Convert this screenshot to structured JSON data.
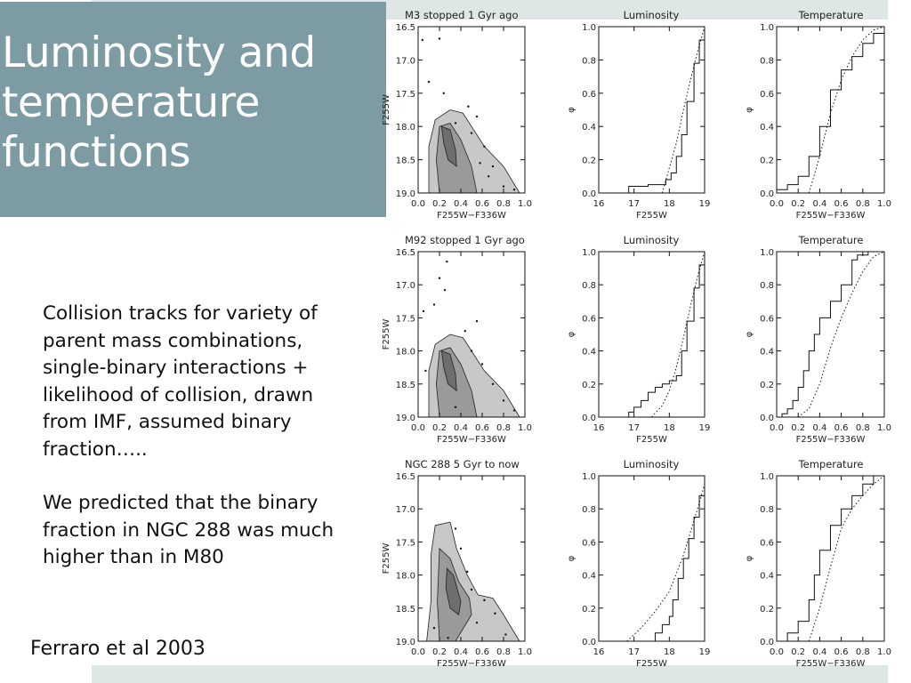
{
  "slide": {
    "title_lines": [
      "Luminosity and",
      "temperature",
      "functions"
    ],
    "paragraph1": "Collision tracks for variety of parent mass combinations, single-binary interactions + likelihood of collision, drawn from IMF, assumed binary fraction…..",
    "paragraph2": "We predicted that the binary fraction in NGC 288 was much higher than in M80",
    "citation": "Ferraro et al 2003",
    "title_bg_color": "#7d9ba3",
    "band_color": "#dfe6e6"
  },
  "chart_data": [
    {
      "type": "scatter",
      "panel": "cmd",
      "row": 0,
      "title": "M3 stopped 1 Gyr ago",
      "xlabel": "F255W−F336W",
      "ylabel": "F255W",
      "xlim": [
        0.0,
        1.0
      ],
      "ylim": [
        19.0,
        16.5
      ],
      "xticks": [
        "0.0",
        "0.2",
        "0.4",
        "0.6",
        "0.8",
        "1.0"
      ],
      "yticks": [
        "16.5",
        "17.0",
        "17.5",
        "18.0",
        "18.5",
        "19.0"
      ],
      "points": [
        [
          0.04,
          16.7
        ],
        [
          0.2,
          16.68
        ],
        [
          0.1,
          17.33
        ],
        [
          0.24,
          17.5
        ],
        [
          0.55,
          17.85
        ],
        [
          0.47,
          17.7
        ],
        [
          0.62,
          18.3
        ],
        [
          0.7,
          18.6
        ],
        [
          0.8,
          18.9
        ],
        [
          0.35,
          17.95
        ],
        [
          0.5,
          18.1
        ],
        [
          0.66,
          18.75
        ],
        [
          0.58,
          18.55
        ],
        [
          0.9,
          18.95
        ]
      ]
    },
    {
      "type": "line",
      "panel": "cdf",
      "row": 0,
      "title": "Luminosity",
      "xlabel": "F255W",
      "ylabel": "φ",
      "xlim": [
        16,
        19
      ],
      "ylim": [
        0.0,
        1.0
      ],
      "xticks": [
        "16",
        "17",
        "18",
        "19"
      ],
      "yticks": [
        "0.0",
        "0.2",
        "0.4",
        "0.6",
        "0.8",
        "1.0"
      ],
      "series": [
        {
          "style": "solid",
          "x": [
            16.6,
            16.85,
            17.4,
            17.9,
            18.05,
            18.2,
            18.35,
            18.5,
            18.7,
            18.85,
            19.0
          ],
          "y": [
            0.0,
            0.04,
            0.05,
            0.08,
            0.12,
            0.22,
            0.35,
            0.55,
            0.78,
            0.92,
            1.0
          ]
        },
        {
          "style": "dotted",
          "x": [
            17.8,
            18.0,
            18.2,
            18.4,
            18.6,
            18.8,
            19.0
          ],
          "y": [
            0.0,
            0.15,
            0.3,
            0.5,
            0.68,
            0.85,
            1.0
          ]
        }
      ]
    },
    {
      "type": "line",
      "panel": "cdf",
      "row": 0,
      "title": "Temperature",
      "xlabel": "F255W−F336W",
      "ylabel": "φ",
      "xlim": [
        0.0,
        1.0
      ],
      "ylim": [
        0.0,
        1.0
      ],
      "xticks": [
        "0.0",
        "0.2",
        "0.4",
        "0.6",
        "0.8",
        "1.0"
      ],
      "yticks": [
        "0.0",
        "0.2",
        "0.4",
        "0.6",
        "0.8",
        "1.0"
      ],
      "series": [
        {
          "style": "solid",
          "x": [
            0.0,
            0.1,
            0.2,
            0.3,
            0.4,
            0.5,
            0.6,
            0.7,
            0.8,
            0.9,
            1.0
          ],
          "y": [
            0.02,
            0.05,
            0.1,
            0.22,
            0.4,
            0.62,
            0.74,
            0.82,
            0.9,
            0.96,
            1.0
          ]
        },
        {
          "style": "dotted",
          "x": [
            0.3,
            0.4,
            0.5,
            0.6,
            0.7,
            0.8,
            0.9,
            1.0
          ],
          "y": [
            0.0,
            0.22,
            0.48,
            0.68,
            0.82,
            0.92,
            0.98,
            1.0
          ]
        }
      ]
    },
    {
      "type": "scatter",
      "panel": "cmd",
      "row": 1,
      "title": "M92 stopped 1 Gyr ago",
      "xlabel": "F255W−F336W",
      "ylabel": "F255W",
      "xlim": [
        0.0,
        1.0
      ],
      "ylim": [
        19.0,
        16.5
      ],
      "xticks": [
        "0.0",
        "0.2",
        "0.4",
        "0.6",
        "0.8",
        "1.0"
      ],
      "yticks": [
        "16.5",
        "17.0",
        "17.5",
        "18.0",
        "18.5",
        "19.0"
      ],
      "points": [
        [
          0.2,
          16.9
        ],
        [
          0.27,
          16.65
        ],
        [
          0.25,
          17.08
        ],
        [
          0.05,
          17.4
        ],
        [
          0.15,
          17.3
        ],
        [
          0.55,
          17.55
        ],
        [
          0.44,
          17.7
        ],
        [
          0.5,
          18.0
        ],
        [
          0.6,
          18.2
        ],
        [
          0.7,
          18.5
        ],
        [
          0.8,
          18.75
        ],
        [
          0.9,
          18.9
        ],
        [
          0.07,
          18.3
        ],
        [
          0.35,
          18.85
        ]
      ]
    },
    {
      "type": "line",
      "panel": "cdf",
      "row": 1,
      "title": "Luminosity",
      "xlabel": "F255W",
      "ylabel": "φ",
      "xlim": [
        16,
        19
      ],
      "ylim": [
        0.0,
        1.0
      ],
      "xticks": [
        "16",
        "17",
        "18",
        "19"
      ],
      "yticks": [
        "0.0",
        "0.2",
        "0.4",
        "0.6",
        "0.8",
        "1.0"
      ],
      "series": [
        {
          "style": "solid",
          "x": [
            16.7,
            16.85,
            17.0,
            17.2,
            17.4,
            17.6,
            17.8,
            18.0,
            18.2,
            18.35,
            18.5,
            18.7,
            18.85,
            19.0
          ],
          "y": [
            0.0,
            0.03,
            0.06,
            0.1,
            0.15,
            0.18,
            0.2,
            0.22,
            0.25,
            0.4,
            0.58,
            0.78,
            0.92,
            1.0
          ]
        },
        {
          "style": "dotted",
          "x": [
            17.5,
            17.8,
            18.0,
            18.2,
            18.4,
            18.6,
            18.8,
            19.0
          ],
          "y": [
            0.0,
            0.07,
            0.16,
            0.3,
            0.48,
            0.67,
            0.85,
            1.0
          ]
        }
      ]
    },
    {
      "type": "line",
      "panel": "cdf",
      "row": 1,
      "title": "Temperature",
      "xlabel": "F255W−F336W",
      "ylabel": "φ",
      "xlim": [
        0.0,
        1.0
      ],
      "ylim": [
        0.0,
        1.0
      ],
      "xticks": [
        "0.0",
        "0.2",
        "0.4",
        "0.6",
        "0.8",
        "1.0"
      ],
      "yticks": [
        "0.0",
        "0.2",
        "0.4",
        "0.6",
        "0.8",
        "1.0"
      ],
      "series": [
        {
          "style": "solid",
          "x": [
            0.0,
            0.05,
            0.1,
            0.15,
            0.2,
            0.25,
            0.3,
            0.35,
            0.4,
            0.5,
            0.6,
            0.7,
            0.75,
            0.85,
            1.0
          ],
          "y": [
            0.0,
            0.02,
            0.05,
            0.1,
            0.18,
            0.28,
            0.4,
            0.5,
            0.6,
            0.7,
            0.8,
            0.95,
            0.98,
            1.0,
            1.0
          ]
        },
        {
          "style": "dotted",
          "x": [
            0.2,
            0.3,
            0.4,
            0.5,
            0.6,
            0.7,
            0.8,
            0.9,
            1.0
          ],
          "y": [
            0.0,
            0.05,
            0.2,
            0.42,
            0.6,
            0.75,
            0.88,
            0.97,
            1.0
          ]
        }
      ]
    },
    {
      "type": "scatter",
      "panel": "cmd",
      "row": 2,
      "title": "NGC 288 5 Gyr to now",
      "xlabel": "F255W−F336W",
      "ylabel": "F255W",
      "xlim": [
        0.0,
        1.0
      ],
      "ylim": [
        19.0,
        16.5
      ],
      "xticks": [
        "0.0",
        "0.2",
        "0.4",
        "0.6",
        "0.8",
        "1.0"
      ],
      "yticks": [
        "16.5",
        "17.0",
        "17.5",
        "18.0",
        "18.5",
        "19.0"
      ],
      "points": [
        [
          0.35,
          17.3
        ],
        [
          0.4,
          17.6
        ],
        [
          0.46,
          17.95
        ],
        [
          0.5,
          18.22
        ],
        [
          0.62,
          18.38
        ],
        [
          0.72,
          18.58
        ],
        [
          0.15,
          18.8
        ],
        [
          0.28,
          18.95
        ],
        [
          0.55,
          18.72
        ],
        [
          0.82,
          18.9
        ]
      ]
    },
    {
      "type": "line",
      "panel": "cdf",
      "row": 2,
      "title": "Luminosity",
      "xlabel": "F255W",
      "ylabel": "φ",
      "xlim": [
        16,
        19
      ],
      "ylim": [
        0.0,
        1.0
      ],
      "xticks": [
        "16",
        "17",
        "18",
        "19"
      ],
      "yticks": [
        "0.0",
        "0.2",
        "0.4",
        "0.6",
        "0.8",
        "1.0"
      ],
      "series": [
        {
          "style": "solid",
          "x": [
            17.5,
            17.6,
            17.8,
            18.0,
            18.1,
            18.25,
            18.4,
            18.55,
            18.7,
            18.85,
            19.0
          ],
          "y": [
            0.0,
            0.05,
            0.1,
            0.15,
            0.25,
            0.38,
            0.5,
            0.62,
            0.75,
            0.88,
            1.0
          ]
        },
        {
          "style": "dotted",
          "x": [
            16.8,
            17.2,
            17.6,
            18.0,
            18.4,
            18.8,
            19.0
          ],
          "y": [
            0.0,
            0.08,
            0.18,
            0.3,
            0.52,
            0.8,
            0.95
          ]
        }
      ]
    },
    {
      "type": "line",
      "panel": "cdf",
      "row": 2,
      "title": "Temperature",
      "xlabel": "F255W−F336W",
      "ylabel": "φ",
      "xlim": [
        0.0,
        1.0
      ],
      "ylim": [
        0.0,
        1.0
      ],
      "xticks": [
        "0.0",
        "0.2",
        "0.4",
        "0.6",
        "0.8",
        "1.0"
      ],
      "yticks": [
        "0.0",
        "0.2",
        "0.4",
        "0.6",
        "0.8",
        "1.0"
      ],
      "series": [
        {
          "style": "solid",
          "x": [
            0.0,
            0.1,
            0.2,
            0.3,
            0.35,
            0.4,
            0.5,
            0.6,
            0.7,
            0.8,
            0.9
          ],
          "y": [
            0.0,
            0.05,
            0.12,
            0.25,
            0.4,
            0.55,
            0.7,
            0.8,
            0.88,
            0.95,
            1.0
          ]
        },
        {
          "style": "dotted",
          "x": [
            0.3,
            0.4,
            0.5,
            0.6,
            0.7,
            0.8,
            0.9,
            1.0
          ],
          "y": [
            0.0,
            0.2,
            0.45,
            0.68,
            0.8,
            0.88,
            0.95,
            1.0
          ]
        }
      ]
    }
  ]
}
